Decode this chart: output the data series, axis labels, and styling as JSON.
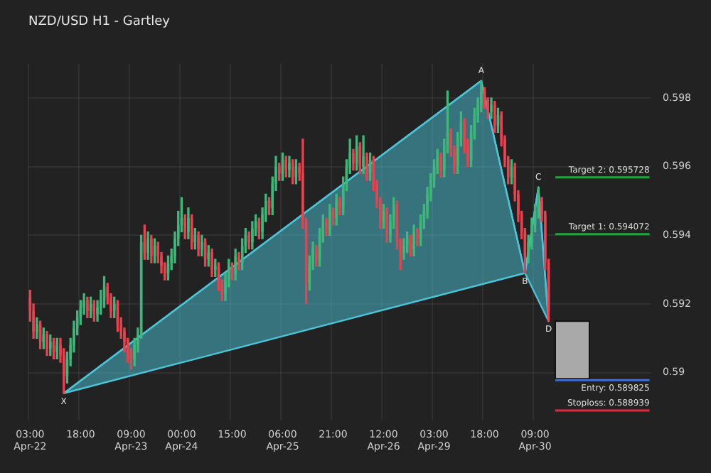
{
  "chart_data": {
    "type": "candlestick",
    "title": "NZD/USD H1 - Gartley",
    "categories": [
      "03:00 Apr-22",
      null,
      null,
      null,
      null,
      null,
      null,
      null,
      null,
      null,
      null,
      null,
      null,
      null,
      null,
      "18:00",
      null,
      null,
      null,
      null,
      null,
      null,
      null,
      null,
      null,
      null,
      null,
      null,
      null,
      null,
      "09:00 Apr-23",
      null,
      null,
      null,
      null,
      null,
      null,
      null,
      null,
      null,
      null,
      null,
      null,
      null,
      null,
      "00:00 Apr-24",
      null,
      null,
      null,
      null,
      null,
      null,
      null,
      null,
      null,
      null,
      null,
      null,
      null,
      null,
      "15:00",
      null,
      null,
      null,
      null,
      null,
      null,
      null,
      null,
      null,
      null,
      null,
      null,
      null,
      null,
      "06:00 Apr-25",
      null,
      null,
      null,
      null,
      null,
      null,
      null,
      null,
      null,
      null,
      null,
      null,
      null,
      null,
      "21:00",
      null,
      null,
      null,
      null,
      null,
      null,
      null,
      null,
      null,
      null,
      null,
      null,
      null,
      null,
      "12:00 Apr-26",
      null,
      null,
      null,
      null,
      null,
      null,
      null,
      null,
      null,
      null,
      null,
      null,
      null,
      null,
      "03:00 Apr-29",
      null,
      null,
      null,
      null,
      null,
      null,
      null,
      null,
      null,
      null,
      null,
      null,
      null,
      null,
      "18:00",
      null,
      null,
      null,
      null,
      null,
      null,
      null,
      null,
      null,
      null,
      null,
      null,
      null,
      null,
      "09:00 Apr-30",
      null,
      null,
      null,
      null,
      null,
      null,
      null,
      null,
      null,
      null,
      null,
      null,
      null,
      null,
      null,
      null,
      null,
      null,
      null,
      null,
      null,
      null,
      null,
      null,
      null,
      null,
      null,
      null,
      null,
      null,
      null,
      null,
      null,
      null
    ],
    "ohlc": [
      [
        0.5922,
        0.5924,
        0.5915,
        0.5918
      ],
      [
        0.5918,
        0.592,
        0.591,
        0.5912
      ],
      [
        0.5912,
        0.5916,
        0.591,
        0.5914
      ],
      [
        0.5914,
        0.5915,
        0.5907,
        0.5909
      ],
      [
        0.5909,
        0.5913,
        0.5907,
        0.5911
      ],
      [
        0.5911,
        0.5912,
        0.5905,
        0.5907
      ],
      [
        0.5907,
        0.5911,
        0.5905,
        0.5909
      ],
      [
        0.5909,
        0.591,
        0.5904,
        0.5906
      ],
      [
        0.5906,
        0.591,
        0.5904,
        0.5908
      ],
      [
        0.5908,
        0.591,
        0.5903,
        0.5905
      ],
      [
        0.5905,
        0.5907,
        0.5894,
        0.5899
      ],
      [
        0.5899,
        0.5906,
        0.5897,
        0.5904
      ],
      [
        0.5904,
        0.591,
        0.5902,
        0.5908
      ],
      [
        0.5908,
        0.5915,
        0.5906,
        0.5913
      ],
      [
        0.5913,
        0.5918,
        0.5911,
        0.5916
      ],
      [
        0.5916,
        0.5921,
        0.5914,
        0.5919
      ],
      [
        0.5919,
        0.5923,
        0.5917,
        0.5921
      ],
      [
        0.5921,
        0.5922,
        0.5916,
        0.5918
      ],
      [
        0.5918,
        0.5922,
        0.5916,
        0.592
      ],
      [
        0.592,
        0.5921,
        0.5915,
        0.5917
      ],
      [
        0.5917,
        0.5921,
        0.5915,
        0.5919
      ],
      [
        0.5919,
        0.5924,
        0.5917,
        0.5921
      ],
      [
        0.5921,
        0.5928,
        0.5919,
        0.5925
      ],
      [
        0.5925,
        0.5926,
        0.592,
        0.5922
      ],
      [
        0.5922,
        0.5923,
        0.5916,
        0.5918
      ],
      [
        0.5918,
        0.5922,
        0.5916,
        0.592
      ],
      [
        0.592,
        0.5921,
        0.5912,
        0.5914
      ],
      [
        0.5914,
        0.5916,
        0.591,
        0.5912
      ],
      [
        0.5912,
        0.5913,
        0.5906,
        0.5909
      ],
      [
        0.5909,
        0.591,
        0.5903,
        0.5906
      ],
      [
        0.5906,
        0.5907,
        0.5901,
        0.5904
      ],
      [
        0.5904,
        0.591,
        0.5902,
        0.5908
      ],
      [
        0.5908,
        0.5913,
        0.5906,
        0.5911
      ],
      [
        0.5911,
        0.594,
        0.591,
        0.5938
      ],
      [
        0.5938,
        0.5943,
        0.5933,
        0.5935
      ],
      [
        0.5935,
        0.5941,
        0.5933,
        0.5939
      ],
      [
        0.5939,
        0.594,
        0.5932,
        0.5934
      ],
      [
        0.5934,
        0.5939,
        0.5932,
        0.5937
      ],
      [
        0.5937,
        0.5938,
        0.5932,
        0.5934
      ],
      [
        0.5934,
        0.5935,
        0.5929,
        0.5931
      ],
      [
        0.5931,
        0.5932,
        0.5927,
        0.5929
      ],
      [
        0.5929,
        0.5934,
        0.5927,
        0.5932
      ],
      [
        0.5932,
        0.5936,
        0.593,
        0.5934
      ],
      [
        0.5934,
        0.5941,
        0.5932,
        0.5939
      ],
      [
        0.5939,
        0.5947,
        0.5937,
        0.5943
      ],
      [
        0.5943,
        0.5951,
        0.5941,
        0.5945
      ],
      [
        0.5945,
        0.5946,
        0.5939,
        0.5941
      ],
      [
        0.5941,
        0.5948,
        0.5939,
        0.5945
      ],
      [
        0.5945,
        0.5946,
        0.5936,
        0.5938
      ],
      [
        0.5938,
        0.5942,
        0.5936,
        0.594
      ],
      [
        0.594,
        0.5941,
        0.5934,
        0.5936
      ],
      [
        0.5936,
        0.594,
        0.5934,
        0.5938
      ],
      [
        0.5938,
        0.5939,
        0.5931,
        0.5933
      ],
      [
        0.5933,
        0.5937,
        0.5931,
        0.5935
      ],
      [
        0.5935,
        0.5936,
        0.5928,
        0.593
      ],
      [
        0.593,
        0.5933,
        0.5928,
        0.5931
      ],
      [
        0.5931,
        0.5932,
        0.5924,
        0.5926
      ],
      [
        0.5926,
        0.5927,
        0.5921,
        0.5923
      ],
      [
        0.5923,
        0.5929,
        0.5921,
        0.5927
      ],
      [
        0.5927,
        0.5933,
        0.5925,
        0.5931
      ],
      [
        0.5931,
        0.5932,
        0.5927,
        0.5929
      ],
      [
        0.5929,
        0.5936,
        0.5927,
        0.5934
      ],
      [
        0.5934,
        0.5935,
        0.593,
        0.5932
      ],
      [
        0.5932,
        0.5939,
        0.593,
        0.5937
      ],
      [
        0.5937,
        0.5942,
        0.5935,
        0.594
      ],
      [
        0.594,
        0.5941,
        0.5936,
        0.5938
      ],
      [
        0.5938,
        0.5944,
        0.5936,
        0.5942
      ],
      [
        0.5942,
        0.5946,
        0.594,
        0.5944
      ],
      [
        0.5944,
        0.5945,
        0.5939,
        0.5941
      ],
      [
        0.5941,
        0.5948,
        0.5939,
        0.5946
      ],
      [
        0.5946,
        0.5952,
        0.5944,
        0.595
      ],
      [
        0.595,
        0.5951,
        0.5946,
        0.5948
      ],
      [
        0.5948,
        0.5957,
        0.5946,
        0.5955
      ],
      [
        0.5955,
        0.5963,
        0.5953,
        0.596
      ],
      [
        0.596,
        0.5961,
        0.5956,
        0.5958
      ],
      [
        0.5958,
        0.5964,
        0.5956,
        0.5962
      ],
      [
        0.5962,
        0.5963,
        0.5957,
        0.5959
      ],
      [
        0.5959,
        0.5963,
        0.5957,
        0.5961
      ],
      [
        0.5961,
        0.5962,
        0.5955,
        0.5957
      ],
      [
        0.5957,
        0.5962,
        0.5955,
        0.596
      ],
      [
        0.596,
        0.5961,
        0.5956,
        0.5958
      ],
      [
        0.5958,
        0.5968,
        0.5942,
        0.5944
      ],
      [
        0.5944,
        0.5945,
        0.592,
        0.5926
      ],
      [
        0.5926,
        0.5934,
        0.5924,
        0.5932
      ],
      [
        0.5932,
        0.5938,
        0.593,
        0.5936
      ],
      [
        0.5936,
        0.5937,
        0.5931,
        0.5933
      ],
      [
        0.5933,
        0.5942,
        0.5931,
        0.594
      ],
      [
        0.594,
        0.5946,
        0.5938,
        0.5944
      ],
      [
        0.5944,
        0.5945,
        0.594,
        0.5942
      ],
      [
        0.5942,
        0.5949,
        0.594,
        0.5947
      ],
      [
        0.5947,
        0.5948,
        0.5943,
        0.5945
      ],
      [
        0.5945,
        0.5952,
        0.5943,
        0.595
      ],
      [
        0.595,
        0.5951,
        0.5946,
        0.5948
      ],
      [
        0.5948,
        0.5957,
        0.5946,
        0.5955
      ],
      [
        0.5955,
        0.5962,
        0.5953,
        0.596
      ],
      [
        0.596,
        0.5968,
        0.5958,
        0.5964
      ],
      [
        0.5964,
        0.5965,
        0.5959,
        0.5961
      ],
      [
        0.5961,
        0.5969,
        0.5959,
        0.5966
      ],
      [
        0.5966,
        0.5967,
        0.5958,
        0.596
      ],
      [
        0.596,
        0.5969,
        0.5958,
        0.5963
      ],
      [
        0.5963,
        0.5964,
        0.5956,
        0.5958
      ],
      [
        0.5958,
        0.5964,
        0.5956,
        0.5962
      ],
      [
        0.5962,
        0.5963,
        0.5953,
        0.5955
      ],
      [
        0.5955,
        0.5956,
        0.5948,
        0.595
      ],
      [
        0.595,
        0.5951,
        0.5942,
        0.5944
      ],
      [
        0.5944,
        0.5949,
        0.5942,
        0.5947
      ],
      [
        0.5947,
        0.5948,
        0.5938,
        0.594
      ],
      [
        0.594,
        0.5946,
        0.5938,
        0.5944
      ],
      [
        0.5944,
        0.5951,
        0.5942,
        0.5949
      ],
      [
        0.5949,
        0.595,
        0.5936,
        0.5938
      ],
      [
        0.5938,
        0.5939,
        0.593,
        0.5935
      ],
      [
        0.5935,
        0.5939,
        0.5933,
        0.5937
      ],
      [
        0.5937,
        0.5941,
        0.5935,
        0.5939
      ],
      [
        0.5939,
        0.594,
        0.5934,
        0.5936
      ],
      [
        0.5936,
        0.5943,
        0.5934,
        0.5941
      ],
      [
        0.5941,
        0.5942,
        0.5937,
        0.5939
      ],
      [
        0.5939,
        0.5946,
        0.5937,
        0.5944
      ],
      [
        0.5944,
        0.5949,
        0.5942,
        0.5947
      ],
      [
        0.5947,
        0.5954,
        0.5945,
        0.5952
      ],
      [
        0.5952,
        0.5958,
        0.595,
        0.5956
      ],
      [
        0.5956,
        0.5962,
        0.5954,
        0.596
      ],
      [
        0.596,
        0.5965,
        0.5958,
        0.5963
      ],
      [
        0.5963,
        0.5964,
        0.5957,
        0.5959
      ],
      [
        0.5959,
        0.5968,
        0.5957,
        0.5966
      ],
      [
        0.5966,
        0.5982,
        0.5964,
        0.597
      ],
      [
        0.597,
        0.5971,
        0.5963,
        0.5965
      ],
      [
        0.5965,
        0.5966,
        0.5958,
        0.596
      ],
      [
        0.596,
        0.597,
        0.5958,
        0.5968
      ],
      [
        0.5968,
        0.5976,
        0.5966,
        0.5973
      ],
      [
        0.5973,
        0.5974,
        0.5964,
        0.5966
      ],
      [
        0.5966,
        0.5968,
        0.596,
        0.5962
      ],
      [
        0.5962,
        0.5972,
        0.596,
        0.597
      ],
      [
        0.597,
        0.5977,
        0.5968,
        0.5975
      ],
      [
        0.5975,
        0.598,
        0.5973,
        0.5978
      ],
      [
        0.5978,
        0.5985,
        0.5976,
        0.5982
      ],
      [
        0.5982,
        0.5983,
        0.5977,
        0.5979
      ],
      [
        0.5979,
        0.598,
        0.5974,
        0.5976
      ],
      [
        0.5976,
        0.598,
        0.5974,
        0.5978
      ],
      [
        0.5978,
        0.5979,
        0.597,
        0.5972
      ],
      [
        0.5972,
        0.5977,
        0.597,
        0.5975
      ],
      [
        0.5975,
        0.5976,
        0.5966,
        0.5968
      ],
      [
        0.5968,
        0.5969,
        0.596,
        0.5962
      ],
      [
        0.5962,
        0.5963,
        0.5955,
        0.5957
      ],
      [
        0.5957,
        0.5962,
        0.5955,
        0.596
      ],
      [
        0.596,
        0.5961,
        0.595,
        0.5952
      ],
      [
        0.5952,
        0.5953,
        0.5944,
        0.5946
      ],
      [
        0.5946,
        0.5947,
        0.5939,
        0.5941
      ],
      [
        0.5941,
        0.5942,
        0.5929,
        0.5934
      ],
      [
        0.5934,
        0.594,
        0.5932,
        0.5938
      ],
      [
        0.5938,
        0.5945,
        0.5936,
        0.5943
      ],
      [
        0.5943,
        0.5949,
        0.5941,
        0.5947
      ],
      [
        0.5947,
        0.5954,
        0.5945,
        0.595
      ],
      [
        0.595,
        0.5951,
        0.5944,
        0.5946
      ],
      [
        0.5946,
        0.5947,
        0.593,
        0.5932
      ],
      [
        0.5932,
        0.5933,
        0.5915,
        0.5918
      ],
      null,
      null,
      null,
      null,
      null,
      null,
      null,
      null,
      null,
      null,
      null,
      null,
      null,
      null,
      null,
      null,
      null,
      null,
      null,
      null,
      null,
      null,
      null,
      null,
      null,
      null,
      null,
      null,
      null,
      null
    ],
    "series": [
      {
        "type": "area",
        "color": "#4cc3d6",
        "values": [
          null,
          null,
          null,
          null,
          null,
          null,
          null,
          null,
          null,
          null,
          0.5894,
          null,
          null,
          null,
          null,
          null,
          null,
          null,
          null,
          null,
          null,
          null,
          null,
          null,
          null,
          null,
          null,
          null,
          null,
          null,
          null,
          null,
          null,
          null,
          null,
          null,
          null,
          null,
          null,
          null,
          null,
          null,
          null,
          null,
          null,
          null,
          null,
          null,
          null,
          null,
          null,
          null,
          null,
          null,
          null,
          null,
          null,
          null,
          null,
          null,
          null,
          null,
          null,
          null,
          null,
          null,
          null,
          null,
          null,
          null,
          null,
          null,
          null,
          null,
          null,
          null,
          null,
          null,
          null,
          null,
          null,
          null,
          null,
          null,
          null,
          null,
          null,
          null,
          null,
          null,
          null,
          null,
          null,
          null,
          null,
          null,
          null,
          null,
          null,
          null,
          null,
          null,
          null,
          null,
          null,
          null,
          null,
          null,
          null,
          null,
          null,
          null,
          null,
          null,
          null,
          null,
          null,
          null,
          null,
          null,
          null,
          null,
          null,
          null,
          null,
          null,
          null,
          null,
          null,
          null,
          null,
          null,
          null,
          null,
          0.5985,
          null,
          null,
          null,
          null,
          null,
          null,
          null,
          null,
          null,
          null,
          null,
          null,
          0.5929,
          null,
          null,
          null,
          0.5954,
          null,
          null,
          0.5915,
          null,
          null,
          null,
          null,
          null,
          null,
          null,
          null,
          null,
          null,
          null,
          null,
          null,
          null,
          null,
          null,
          null,
          null,
          null,
          null,
          null,
          null,
          null,
          null,
          null,
          null,
          null,
          null,
          null,
          null
        ],
        "value_labels": [
          null,
          null,
          null,
          null,
          null,
          null,
          null,
          null,
          null,
          null,
          "X",
          null,
          null,
          null,
          null,
          null,
          null,
          null,
          null,
          null,
          null,
          null,
          null,
          null,
          null,
          null,
          null,
          null,
          null,
          null,
          null,
          null,
          null,
          null,
          null,
          null,
          null,
          null,
          null,
          null,
          null,
          null,
          null,
          null,
          null,
          null,
          null,
          null,
          null,
          null,
          null,
          null,
          null,
          null,
          null,
          null,
          null,
          null,
          null,
          null,
          null,
          null,
          null,
          null,
          null,
          null,
          null,
          null,
          null,
          null,
          null,
          null,
          null,
          null,
          null,
          null,
          null,
          null,
          null,
          null,
          null,
          null,
          null,
          null,
          null,
          null,
          null,
          null,
          null,
          null,
          null,
          null,
          null,
          null,
          null,
          null,
          null,
          null,
          null,
          null,
          null,
          null,
          null,
          null,
          null,
          null,
          null,
          null,
          null,
          null,
          null,
          null,
          null,
          null,
          null,
          null,
          null,
          null,
          null,
          null,
          null,
          null,
          null,
          null,
          null,
          null,
          null,
          null,
          null,
          null,
          null,
          null,
          null,
          null,
          "A",
          null,
          null,
          null,
          null,
          null,
          null,
          null,
          null,
          null,
          null,
          null,
          null,
          "B",
          null,
          null,
          null,
          "C",
          null,
          null,
          "D",
          null,
          null,
          null,
          null,
          null,
          null,
          null,
          null,
          null,
          null,
          null,
          null,
          null,
          null,
          null,
          null,
          null,
          null,
          null,
          null,
          null,
          null,
          null,
          null,
          null,
          null,
          null,
          null,
          null,
          null
        ]
      }
    ],
    "ylim": [
      0.5886,
      0.599
    ],
    "yticks": [
      0.59,
      0.592,
      0.594,
      0.596,
      0.598
    ],
    "grid": true,
    "legend": false,
    "ref_lines": [
      {
        "axis": "y",
        "value": 0.595728,
        "label": "Target 2: 0.595728",
        "color": "#1fa83a"
      },
      {
        "axis": "y",
        "value": 0.594072,
        "label": "Target 1: 0.594072",
        "color": "#1fa83a"
      },
      {
        "axis": "y",
        "value": 0.589825,
        "label": "Entry: 0.589825",
        "color": "#3f6fd0"
      },
      {
        "axis": "y",
        "value": 0.588939,
        "label": "Stoploss: 0.588939",
        "color": "#e02c3c"
      }
    ],
    "bands": [
      {
        "axis": "y",
        "from": 0.589825,
        "to": 0.5915,
        "color": "#a9a9a9"
      }
    ]
  }
}
